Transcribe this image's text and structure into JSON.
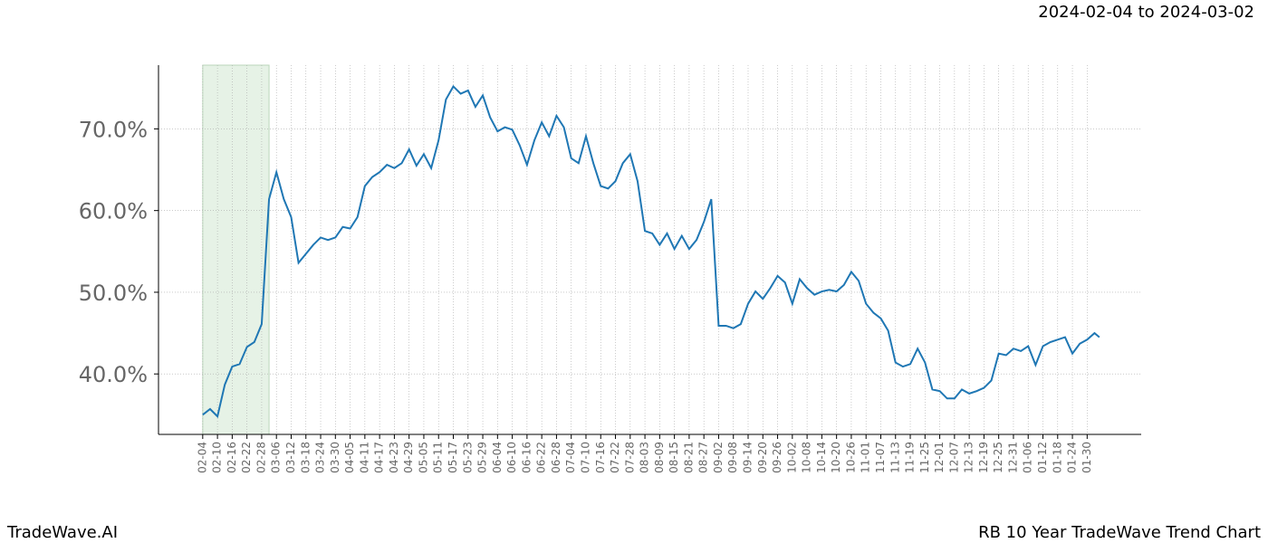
{
  "chart_data": {
    "type": "line",
    "subtitle": "2024-02-04 to 2024-03-02",
    "footer_left": "TradeWave.AI",
    "footer_right": "RB 10 Year TradeWave Trend Chart",
    "shade_x": [
      0,
      27
    ],
    "x": [
      0,
      3,
      6,
      9,
      12,
      15,
      18,
      21,
      24,
      27,
      30,
      33,
      36,
      39,
      42,
      45,
      48,
      51,
      54,
      57,
      60,
      63,
      66,
      69,
      72,
      75,
      78,
      81,
      84,
      87,
      90,
      93,
      96,
      99,
      102,
      105,
      108,
      111,
      114,
      117,
      120,
      123,
      126,
      129,
      132,
      135,
      138,
      141,
      144,
      147,
      150,
      153,
      156,
      159,
      162,
      165,
      168,
      171,
      174,
      177,
      180,
      183,
      186,
      189,
      192,
      195,
      198,
      201,
      204,
      207,
      210,
      213,
      216,
      219,
      222,
      225,
      228,
      231,
      234,
      237,
      240,
      243,
      246,
      249,
      252,
      255,
      258,
      261,
      264,
      267,
      270,
      273,
      276,
      279,
      282,
      285,
      288,
      291,
      294,
      297,
      300,
      303,
      306,
      309,
      312,
      315,
      318,
      321,
      324,
      327,
      330,
      333,
      336,
      339,
      342,
      345,
      348,
      351,
      354,
      357,
      360,
      363,
      365
    ],
    "series": [
      {
        "name": "RB",
        "color": "#1f77b4",
        "values": [
          35.0,
          35.7,
          34.8,
          38.7,
          40.9,
          41.2,
          43.3,
          43.9,
          46.1,
          61.4,
          64.7,
          61.4,
          59.2,
          53.6,
          54.7,
          55.8,
          56.7,
          56.4,
          56.7,
          58.0,
          57.8,
          59.2,
          63.0,
          64.1,
          64.7,
          65.6,
          65.2,
          65.8,
          67.5,
          65.5,
          66.9,
          65.2,
          68.6,
          73.6,
          75.2,
          74.3,
          74.7,
          72.7,
          74.1,
          71.4,
          69.7,
          70.2,
          69.9,
          68.0,
          65.6,
          68.6,
          70.8,
          69.1,
          71.6,
          70.2,
          66.4,
          65.8,
          69.1,
          65.8,
          63.0,
          62.7,
          63.6,
          65.8,
          66.9,
          63.6,
          57.5,
          57.2,
          55.8,
          57.2,
          55.3,
          56.9,
          55.3,
          56.4,
          58.6,
          61.4,
          45.9,
          45.9,
          45.6,
          46.1,
          48.6,
          50.1,
          49.2,
          50.5,
          52.0,
          51.2,
          48.6,
          51.6,
          50.5,
          49.7,
          50.1,
          50.3,
          50.1,
          50.9,
          52.5,
          51.4,
          48.6,
          47.5,
          46.8,
          45.3,
          41.4,
          40.9,
          41.2,
          43.1,
          41.4,
          38.1,
          37.9,
          37.0,
          37.0,
          38.1,
          37.6,
          37.9,
          38.3,
          39.2,
          42.5,
          42.3,
          43.1,
          42.8,
          43.4,
          41.1,
          43.4,
          43.9,
          44.2,
          44.5,
          42.5,
          43.7,
          44.2,
          45.0,
          44.5
        ]
      }
    ],
    "xlim": [
      -18,
      382
    ],
    "xticks": [
      {
        "value": 0,
        "label": "02-04"
      },
      {
        "value": 6,
        "label": "02-10"
      },
      {
        "value": 12,
        "label": "02-16"
      },
      {
        "value": 18,
        "label": "02-22"
      },
      {
        "value": 24,
        "label": "02-28"
      },
      {
        "value": 30,
        "label": "03-06"
      },
      {
        "value": 36,
        "label": "03-12"
      },
      {
        "value": 42,
        "label": "03-18"
      },
      {
        "value": 48,
        "label": "03-24"
      },
      {
        "value": 54,
        "label": "03-30"
      },
      {
        "value": 60,
        "label": "04-05"
      },
      {
        "value": 66,
        "label": "04-11"
      },
      {
        "value": 72,
        "label": "04-17"
      },
      {
        "value": 78,
        "label": "04-23"
      },
      {
        "value": 84,
        "label": "04-29"
      },
      {
        "value": 90,
        "label": "05-05"
      },
      {
        "value": 96,
        "label": "05-11"
      },
      {
        "value": 102,
        "label": "05-17"
      },
      {
        "value": 108,
        "label": "05-23"
      },
      {
        "value": 114,
        "label": "05-29"
      },
      {
        "value": 120,
        "label": "06-04"
      },
      {
        "value": 126,
        "label": "06-10"
      },
      {
        "value": 132,
        "label": "06-16"
      },
      {
        "value": 138,
        "label": "06-22"
      },
      {
        "value": 144,
        "label": "06-28"
      },
      {
        "value": 150,
        "label": "07-04"
      },
      {
        "value": 156,
        "label": "07-10"
      },
      {
        "value": 162,
        "label": "07-16"
      },
      {
        "value": 168,
        "label": "07-22"
      },
      {
        "value": 174,
        "label": "07-28"
      },
      {
        "value": 180,
        "label": "08-03"
      },
      {
        "value": 186,
        "label": "08-09"
      },
      {
        "value": 192,
        "label": "08-15"
      },
      {
        "value": 198,
        "label": "08-21"
      },
      {
        "value": 204,
        "label": "08-27"
      },
      {
        "value": 210,
        "label": "09-02"
      },
      {
        "value": 216,
        "label": "09-08"
      },
      {
        "value": 222,
        "label": "09-14"
      },
      {
        "value": 228,
        "label": "09-20"
      },
      {
        "value": 234,
        "label": "09-26"
      },
      {
        "value": 240,
        "label": "10-02"
      },
      {
        "value": 246,
        "label": "10-08"
      },
      {
        "value": 252,
        "label": "10-14"
      },
      {
        "value": 258,
        "label": "10-20"
      },
      {
        "value": 264,
        "label": "10-26"
      },
      {
        "value": 270,
        "label": "11-01"
      },
      {
        "value": 276,
        "label": "11-07"
      },
      {
        "value": 282,
        "label": "11-13"
      },
      {
        "value": 288,
        "label": "11-19"
      },
      {
        "value": 294,
        "label": "11-25"
      },
      {
        "value": 300,
        "label": "12-01"
      },
      {
        "value": 306,
        "label": "12-07"
      },
      {
        "value": 312,
        "label": "12-13"
      },
      {
        "value": 318,
        "label": "12-19"
      },
      {
        "value": 324,
        "label": "12-25"
      },
      {
        "value": 330,
        "label": "12-31"
      },
      {
        "value": 336,
        "label": "01-06"
      },
      {
        "value": 342,
        "label": "01-12"
      },
      {
        "value": 348,
        "label": "01-18"
      },
      {
        "value": 354,
        "label": "01-24"
      },
      {
        "value": 360,
        "label": "01-30"
      }
    ],
    "ylim": [
      32.6,
      77.8
    ],
    "yticks": [
      {
        "value": 40,
        "label": "40.0%"
      },
      {
        "value": 50,
        "label": "50.0%"
      },
      {
        "value": 60,
        "label": "60.0%"
      },
      {
        "value": 70,
        "label": "70.0%"
      }
    ],
    "grid": true
  }
}
